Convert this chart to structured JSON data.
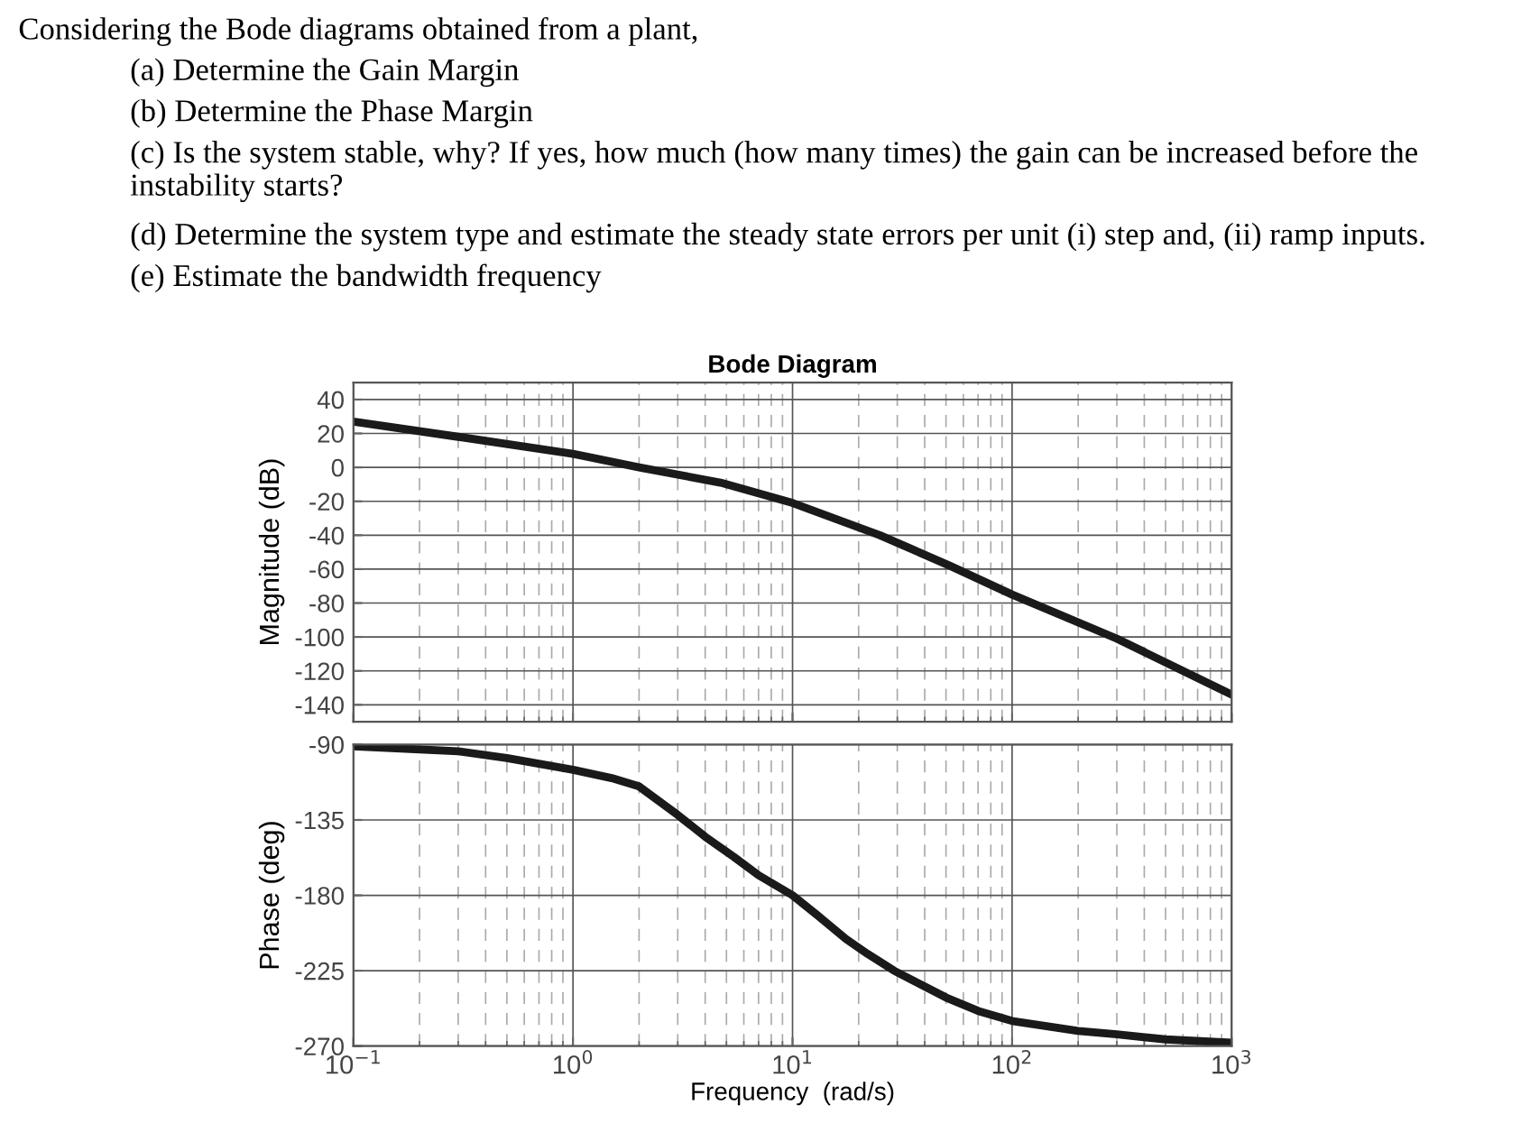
{
  "chart_data": [
    {
      "type": "line",
      "title": "Bode Diagram",
      "ylabel": "Magnitude (dB)",
      "annotations": [
        "Considering the Bode diagrams obtained from a plant,",
        "(a) Determine the Gain Margin",
        "(b) Determine the Phase Margin",
        "(c) Is the system stable, why? If yes, how much (how many times) the gain can be increased before the instability starts?",
        "(d) Determine the system type and estimate the steady state errors per unit (i) step and, (ii) ramp inputs.",
        "(e) Estimate the bandwidth frequency"
      ],
      "x": [
        0.1,
        0.3,
        1,
        2,
        4.7,
        10,
        25,
        52,
        100,
        300,
        1000
      ],
      "series": [
        {
          "color": "#1a1a1a",
          "values": [
            27,
            18,
            8,
            0,
            -9,
            -21,
            -40,
            -58,
            -75,
            -101,
            -134
          ]
        }
      ],
      "log": "x",
      "xlim": [
        0.1,
        1000
      ],
      "ylim": [
        -150,
        50
      ],
      "yticks": [
        -140,
        -120,
        -100,
        -80,
        -60,
        -40,
        -20,
        0,
        20,
        40
      ],
      "tick_labels": "y",
      "grid": true,
      "line_style": "solid",
      "marker": "none",
      "legend": false
    },
    {
      "type": "line",
      "xlabel": "Frequency  (rad/s)",
      "ylabel": "Phase (deg)",
      "x": [
        0.1,
        0.3,
        0.5,
        1,
        1.5,
        2,
        3,
        4,
        5.4,
        7,
        10,
        13,
        17.5,
        22,
        29,
        50,
        70,
        100,
        200,
        300,
        500,
        1000
      ],
      "series": [
        {
          "color": "#1a1a1a",
          "values": [
            -91,
            -94,
            -98,
            -105,
            -110,
            -115,
            -132,
            -145,
            -157,
            -168,
            -180,
            -192,
            -206,
            -215,
            -225,
            -241,
            -249,
            -255,
            -261,
            -263,
            -266,
            -268
          ]
        }
      ],
      "log": "x",
      "xlim": [
        0.1,
        1000
      ],
      "xticks": [
        {
          "value": 0.1,
          "label": "10$^{−1}$"
        },
        {
          "value": 1,
          "label": "10$^{0}$"
        },
        {
          "value": 10,
          "label": "10$^{1}$"
        },
        {
          "value": 100,
          "label": "10$^{2}$"
        },
        {
          "value": 1000,
          "label": "10$^{3}$"
        }
      ],
      "ylim": [
        -270,
        -90
      ],
      "yticks": [
        -270,
        -225,
        -180,
        -135,
        -90
      ],
      "grid": true,
      "line_style": "solid",
      "marker": "none",
      "legend": false
    }
  ]
}
